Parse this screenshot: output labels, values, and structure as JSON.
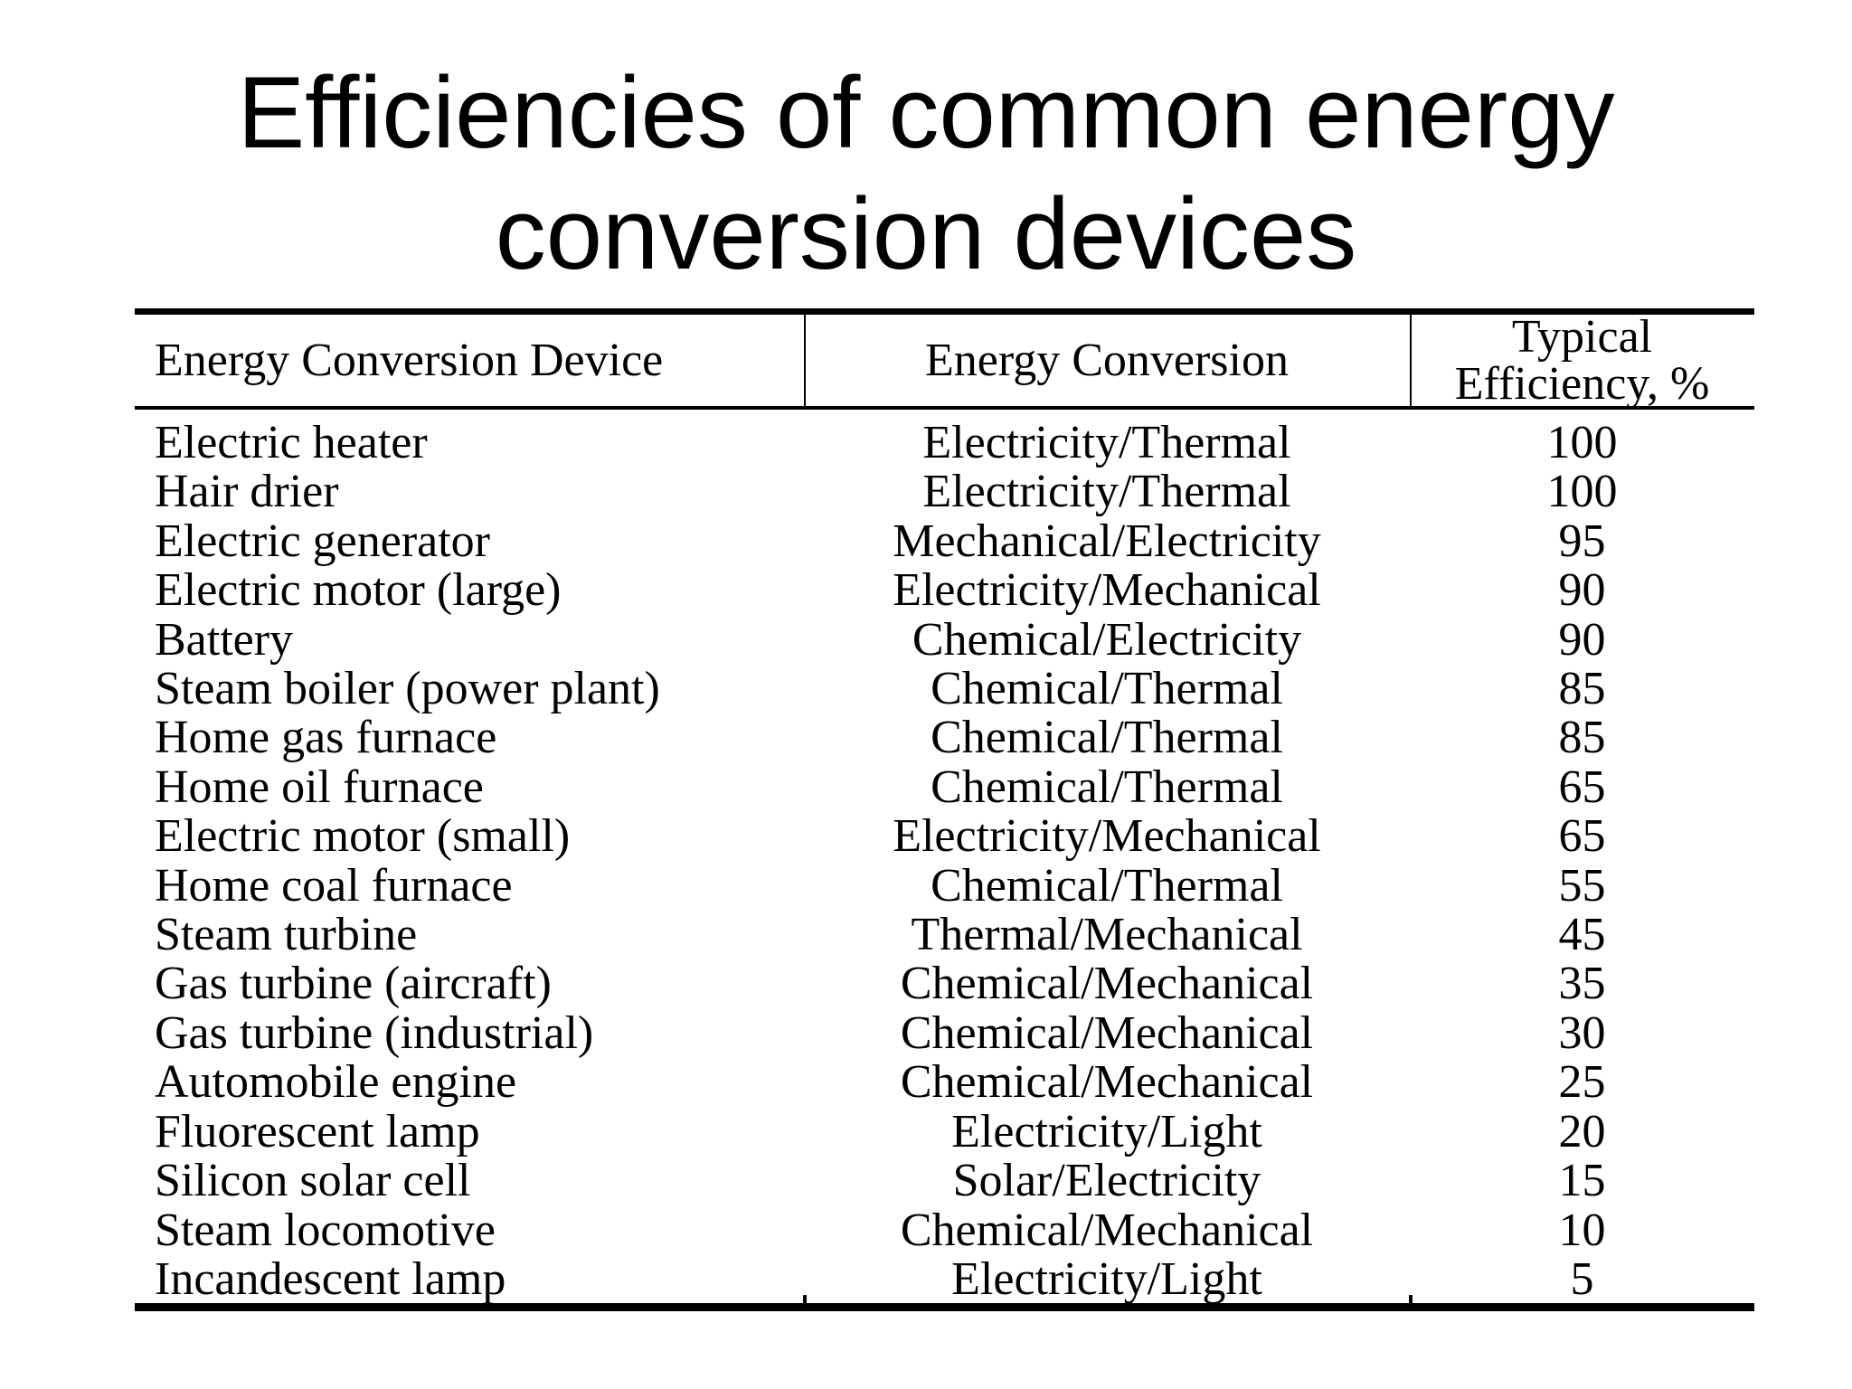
{
  "slide": {
    "title_line1": "Efficiencies of common energy",
    "title_line2": "conversion devices",
    "background_color": "#ffffff",
    "text_color": "#000000"
  },
  "table": {
    "header": {
      "device": "Energy Conversion Device",
      "conversion": "Energy Conversion",
      "efficiency_line1": "Typical",
      "efficiency_line2": "Efficiency, %"
    },
    "rows": [
      {
        "device": "Electric heater",
        "conversion": "Electricity/Thermal",
        "efficiency": "100"
      },
      {
        "device": "Hair drier",
        "conversion": "Electricity/Thermal",
        "efficiency": "100"
      },
      {
        "device": "Electric generator",
        "conversion": "Mechanical/Electricity",
        "efficiency": "95"
      },
      {
        "device": "Electric motor (large)",
        "conversion": "Electricity/Mechanical",
        "efficiency": "90"
      },
      {
        "device": "Battery",
        "conversion": "Chemical/Electricity",
        "efficiency": "90"
      },
      {
        "device": "Steam boiler (power plant)",
        "conversion": "Chemical/Thermal",
        "efficiency": "85"
      },
      {
        "device": "Home gas furnace",
        "conversion": "Chemical/Thermal",
        "efficiency": "85"
      },
      {
        "device": "Home oil furnace",
        "conversion": "Chemical/Thermal",
        "efficiency": "65"
      },
      {
        "device": "Electric motor (small)",
        "conversion": "Electricity/Mechanical",
        "efficiency": "65"
      },
      {
        "device": "Home coal furnace",
        "conversion": "Chemical/Thermal",
        "efficiency": "55"
      },
      {
        "device": "Steam turbine",
        "conversion": "Thermal/Mechanical",
        "efficiency": "45"
      },
      {
        "device": "Gas turbine (aircraft)",
        "conversion": "Chemical/Mechanical",
        "efficiency": "35"
      },
      {
        "device": "Gas turbine (industrial)",
        "conversion": "Chemical/Mechanical",
        "efficiency": "30"
      },
      {
        "device": "Automobile engine",
        "conversion": "Chemical/Mechanical",
        "efficiency": "25"
      },
      {
        "device": "Fluorescent lamp",
        "conversion": "Electricity/Light",
        "efficiency": "20"
      },
      {
        "device": "Silicon solar cell",
        "conversion": "Solar/Electricity",
        "efficiency": "15"
      },
      {
        "device": "Steam locomotive",
        "conversion": "Chemical/Mechanical",
        "efficiency": "10"
      },
      {
        "device": "Incandescent lamp",
        "conversion": "Electricity/Light",
        "efficiency": "5"
      }
    ]
  }
}
